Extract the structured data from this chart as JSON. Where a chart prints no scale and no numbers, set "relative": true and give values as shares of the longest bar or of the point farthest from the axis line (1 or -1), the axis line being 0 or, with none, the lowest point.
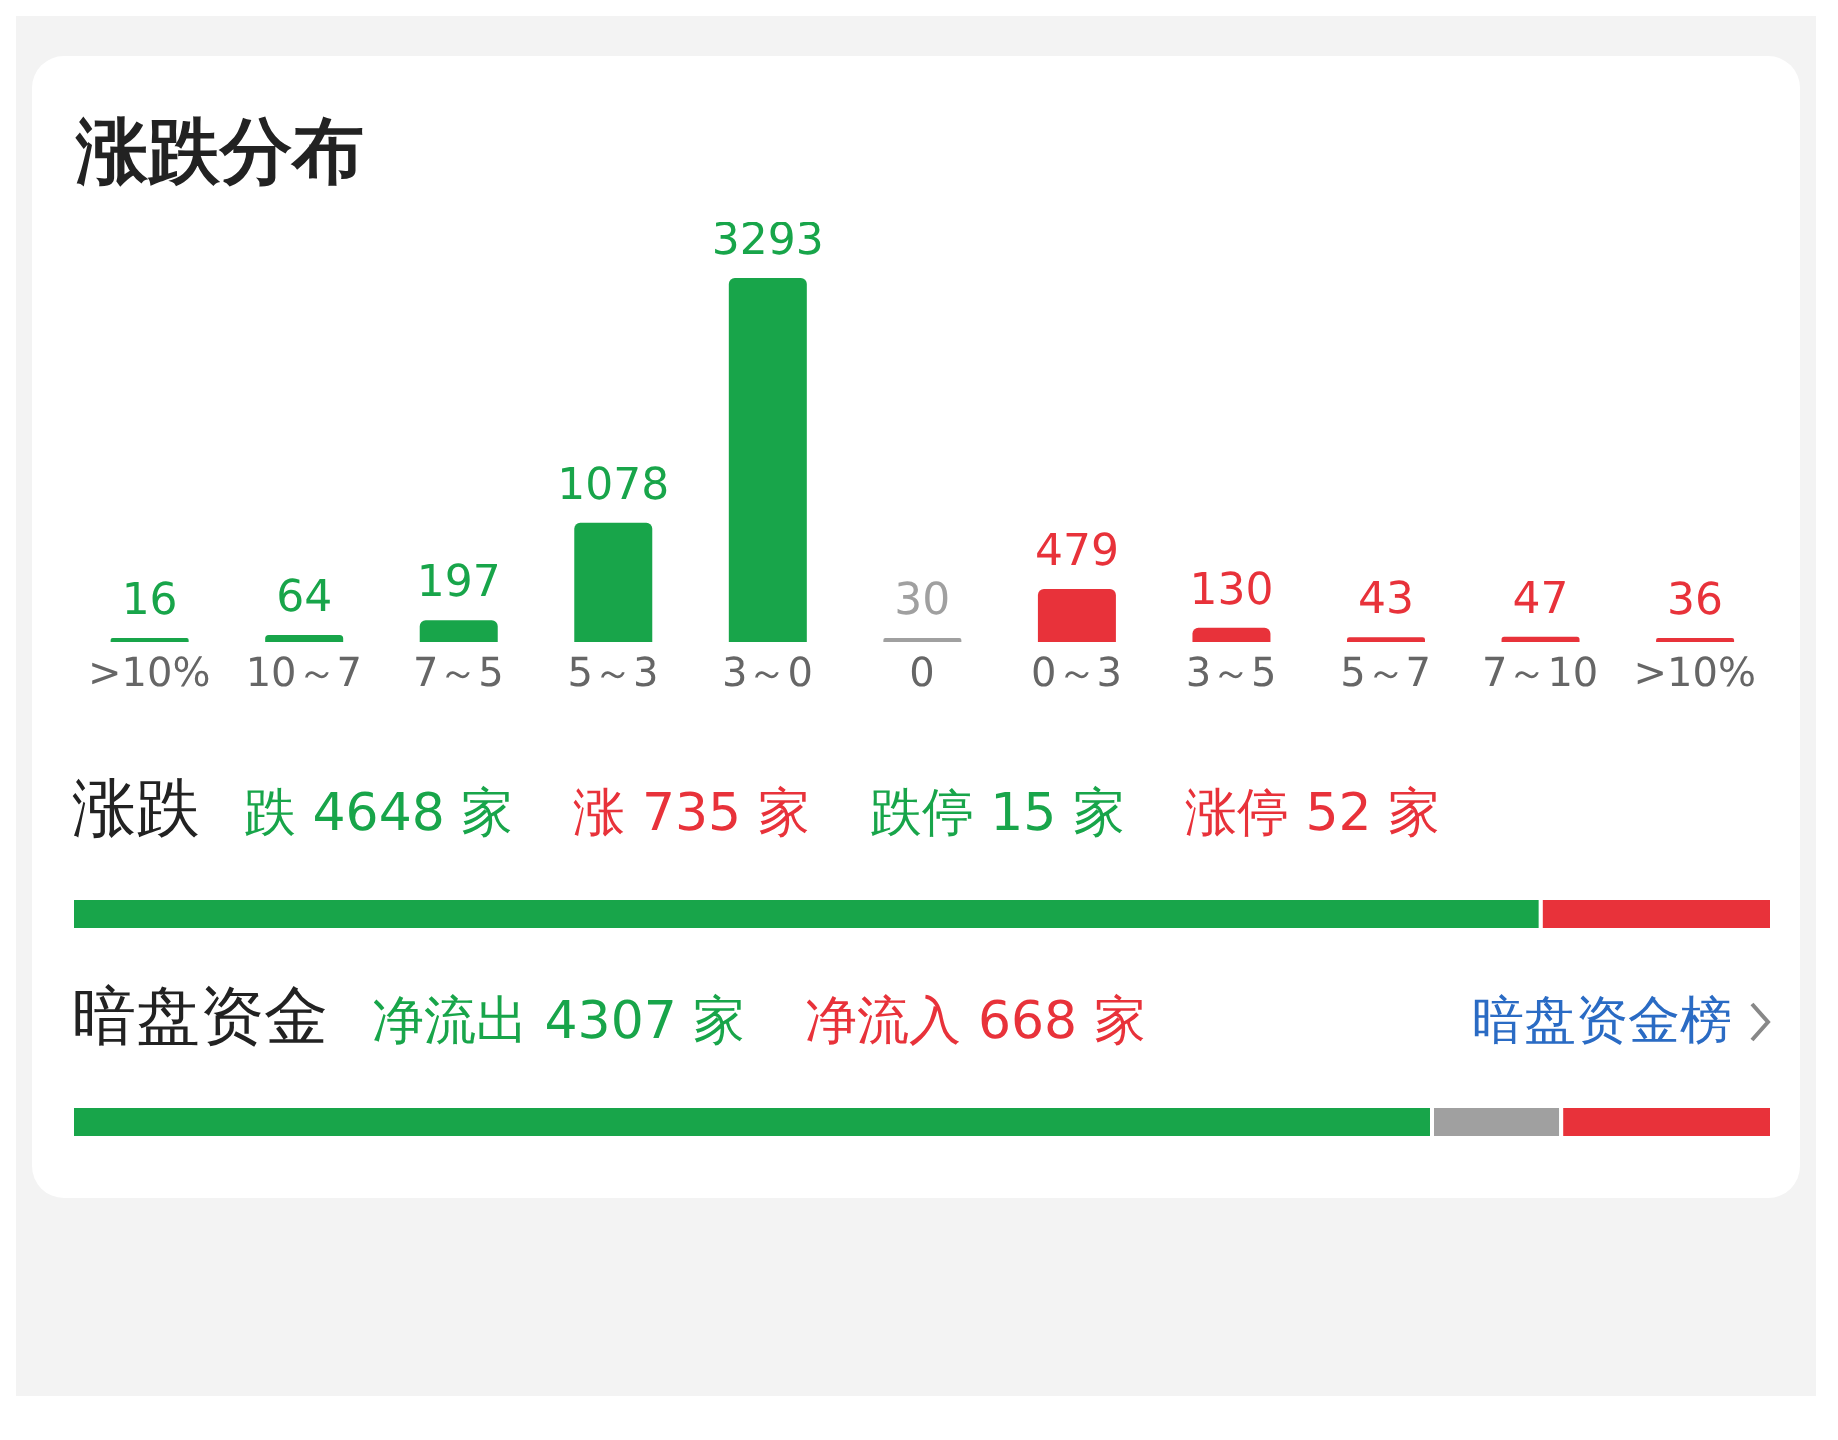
{
  "chart_data": [
    {
      "type": "bar",
      "title": "涨跌分布",
      "categories": [
        ">10%",
        "10～7",
        "7～5",
        "5～3",
        "3～0",
        "0",
        "0～3",
        "3～5",
        "5～7",
        "7～10",
        ">10%"
      ],
      "values": [
        16,
        64,
        197,
        1078,
        3293,
        30,
        479,
        130,
        43,
        47,
        36
      ],
      "colors": [
        "#18a54a",
        "#18a54a",
        "#18a54a",
        "#18a54a",
        "#18a54a",
        "#a0a0a0",
        "#e8323a",
        "#e8323a",
        "#e8323a",
        "#e8323a",
        "#e8323a"
      ],
      "data_labels": true
    },
    {
      "type": "bar",
      "orientation": "horizontal",
      "stacked": true,
      "relative": true,
      "title": "涨跌",
      "categories": [
        null
      ],
      "legend": "top",
      "series": [
        {
          "name": "跌 4648 家",
          "color": "#18a54a",
          "values": [
            0.864
          ]
        },
        {
          "name": "涨 735 家",
          "color": "#e8323a",
          "values": [
            0.136
          ]
        }
      ],
      "annotations": [
        "跌停 15 家",
        "涨停 52 家"
      ]
    },
    {
      "type": "bar",
      "orientation": "horizontal",
      "stacked": true,
      "relative": true,
      "title": "暗盘资金",
      "categories": [
        null
      ],
      "legend": "top",
      "series": [
        {
          "name": "净流出 4307 家",
          "color": "#18a54a",
          "values": [
            0.8
          ]
        },
        {
          "color": "#a0a0a0",
          "values": [
            0.076
          ]
        },
        {
          "name": "净流入 668 家",
          "color": "#e8323a",
          "values": [
            0.124
          ]
        }
      ],
      "annotations": [
        "暗盘资金榜"
      ]
    }
  ]
}
